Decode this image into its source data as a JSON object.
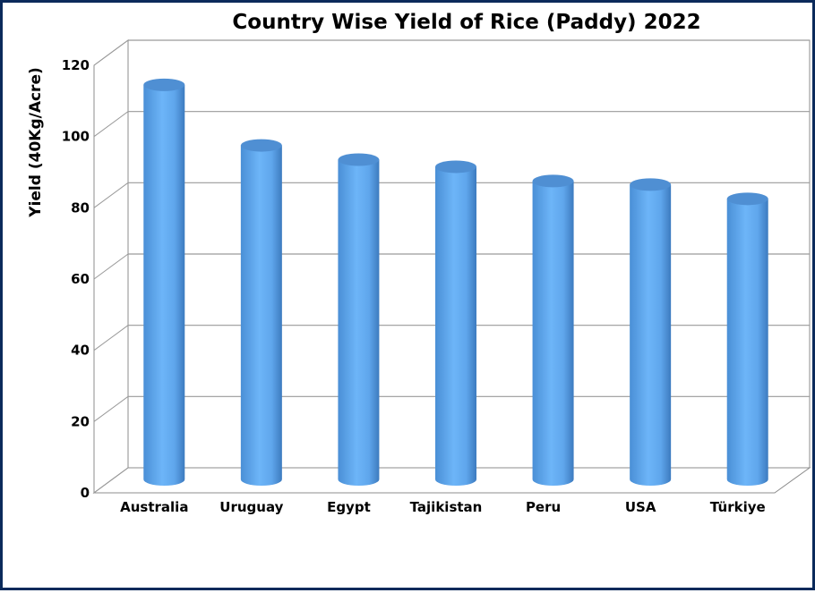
{
  "chart_data": {
    "type": "bar",
    "title": "Country Wise Yield of Rice (Paddy) 2022",
    "xlabel": "",
    "ylabel": "Yield (40Kg/Acre)",
    "categories": [
      "Australia",
      "Uruguay",
      "Egypt",
      "Tajikistan",
      "Peru",
      "USA",
      "Türkiye"
    ],
    "values": [
      111,
      94,
      90,
      88,
      84,
      83,
      79
    ],
    "ylim": [
      0,
      120
    ],
    "yticks": [
      "0",
      "20",
      "40",
      "60",
      "80",
      "100",
      "120"
    ],
    "grid": true,
    "legend": "none",
    "bar_color": "#63adf2"
  }
}
